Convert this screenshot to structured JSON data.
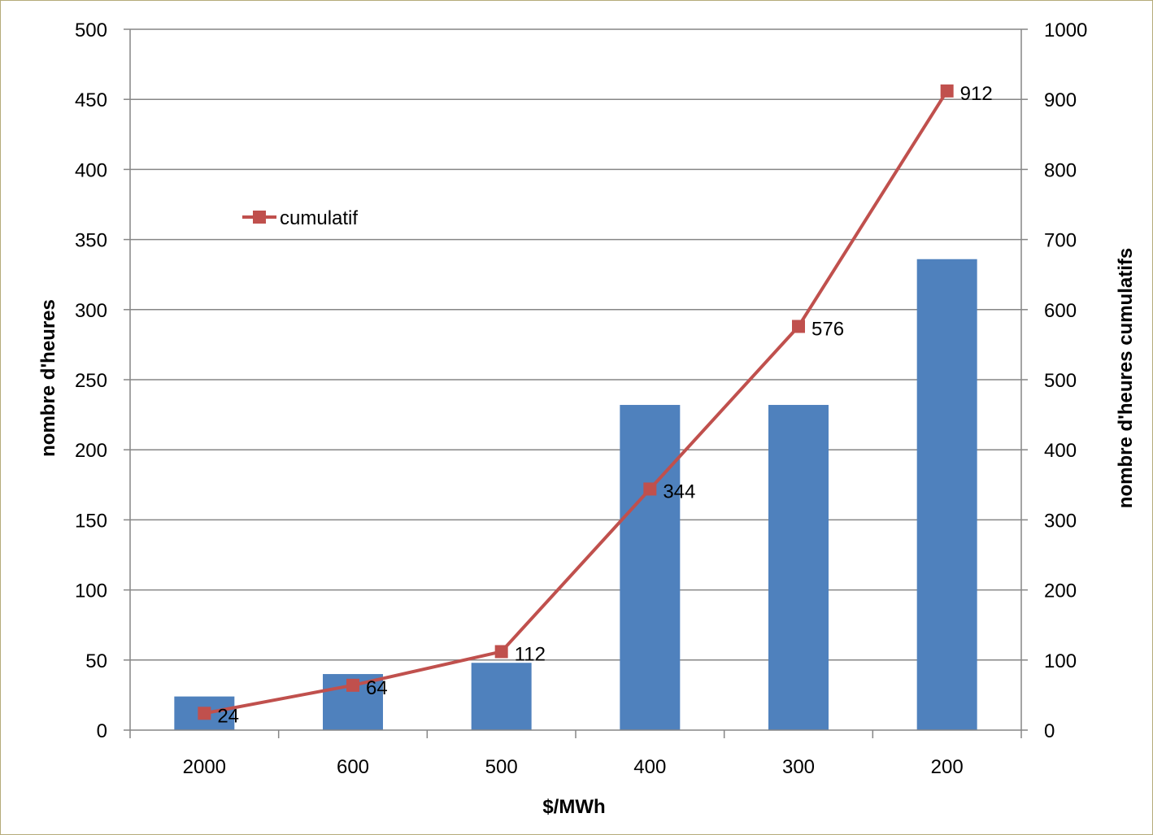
{
  "chart_data": {
    "type": "bar",
    "categories": [
      "2000",
      "600",
      "500",
      "400",
      "300",
      "200"
    ],
    "xlabel": "$/MWh",
    "ylabel": "nombre d'heures",
    "y2label": "nombre d'heures cumulatifs",
    "ylim": [
      0,
      500
    ],
    "y2lim": [
      0,
      1000
    ],
    "yticks": [
      "0",
      "50",
      "100",
      "150",
      "200",
      "250",
      "300",
      "350",
      "400",
      "450",
      "500"
    ],
    "y2ticks": [
      "0",
      "100",
      "200",
      "300",
      "400",
      "500",
      "600",
      "700",
      "800",
      "900",
      "1000"
    ],
    "grid": true,
    "legend": "top-left",
    "series": [
      {
        "type": "bar",
        "axis": "left",
        "values": [
          24,
          40,
          48,
          232,
          232,
          336
        ],
        "color": "#4f81bd"
      },
      {
        "type": "line",
        "axis": "right",
        "name": "cumulatif",
        "values": [
          24,
          64,
          112,
          344,
          576,
          912
        ],
        "labels": [
          "24",
          "64",
          "112",
          "344",
          "576",
          "912"
        ],
        "color": "#c0504d"
      }
    ]
  }
}
